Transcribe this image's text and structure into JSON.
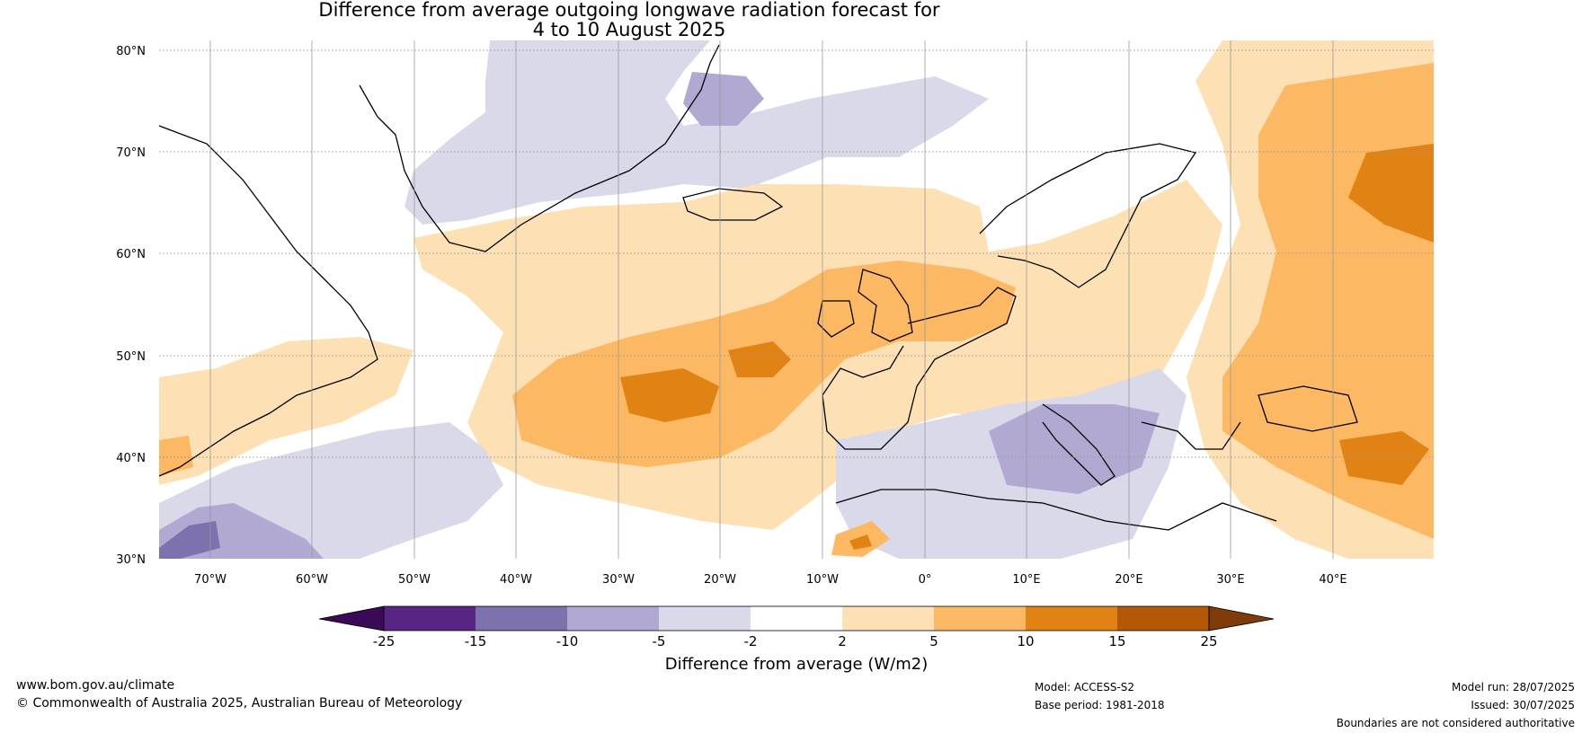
{
  "title": {
    "line1": "Difference from average outgoing longwave radiation forecast for",
    "line2": "4 to 10 August 2025"
  },
  "axes": {
    "lat_labels": [
      "80°N",
      "70°N",
      "60°N",
      "50°N",
      "40°N",
      "30°N"
    ],
    "lon_labels": [
      "70°W",
      "60°W",
      "50°W",
      "40°W",
      "30°W",
      "20°W",
      "10°W",
      "0°",
      "10°E",
      "20°E",
      "30°E",
      "40°E"
    ]
  },
  "colorbar": {
    "title": "Difference from average (W/m2)",
    "ticks": [
      "-25",
      "-15",
      "-10",
      "-5",
      "-2",
      "2",
      "5",
      "10",
      "15",
      "25"
    ],
    "colors": [
      "#3b0a57",
      "#572584",
      "#7e72ae",
      "#b1a9d2",
      "#d9d9ea",
      "#ffffff",
      "#fde0b4",
      "#fdb863",
      "#e08214",
      "#b35806",
      "#7f3b08"
    ]
  },
  "footer": {
    "website": "www.bom.gov.au/climate",
    "copyright": "© Commonwealth of Australia 2025, Australian Bureau of Meteorology",
    "model": "Model: ACCESS-S2",
    "base_period": "Base period: 1981-2018",
    "model_run": "Model run: 28/07/2025",
    "issued": "Issued: 30/07/2025",
    "disclaimer": "Boundaries are not considered authoritative"
  }
}
